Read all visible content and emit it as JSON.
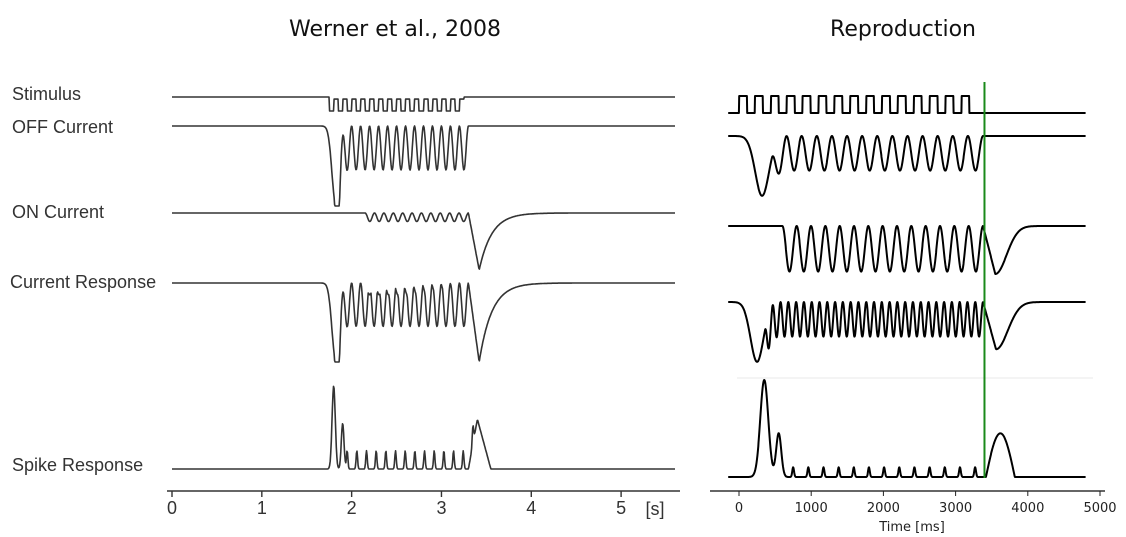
{
  "chart_data": [
    {
      "type": "line",
      "title": "Werner et al., 2008",
      "xunit": "[s]",
      "xlim": [
        0,
        5.6
      ],
      "xticks": [
        "0",
        "1",
        "2",
        "3",
        "4",
        "5"
      ],
      "stimulus_window": [
        1.75,
        3.25
      ],
      "flicker_cycles": 15,
      "series": [
        {
          "name": "Stimulus"
        },
        {
          "name": "OFF Current"
        },
        {
          "name": "ON Current"
        },
        {
          "name": "Current Response"
        },
        {
          "name": "Spike Response"
        }
      ]
    },
    {
      "type": "line",
      "title": "Reproduction",
      "xlabel": "Time [ms]",
      "xlim": [
        -150,
        5000
      ],
      "xticks": [
        "0",
        "1000",
        "2000",
        "3000",
        "4000",
        "5000"
      ],
      "stimulus_window": [
        0,
        3300
      ],
      "flicker_cycles": 15,
      "marker_line": {
        "x": 3400,
        "color": "#1a8a1a"
      },
      "spike_peaks": [
        {
          "x": 350,
          "y": 1.0
        },
        {
          "x": 550,
          "y": 0.45
        },
        {
          "x": 3570,
          "y": 0.45
        }
      ],
      "small_spike_height": 0.1
    }
  ]
}
